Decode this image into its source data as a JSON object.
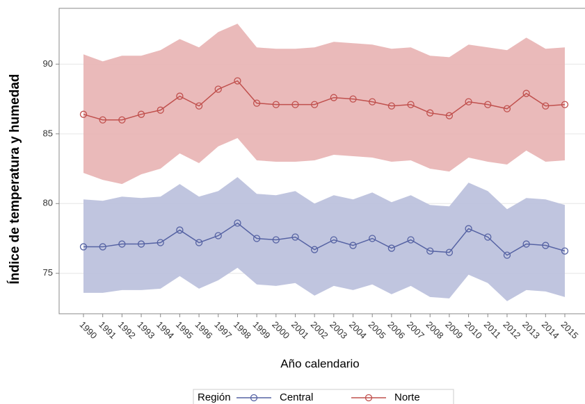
{
  "chart_data": {
    "type": "line-band",
    "y_label": "Índice de temperatura y humedad",
    "x_label": "Año calendario",
    "legend_title": "Región",
    "categories": [
      "1990",
      "1991",
      "1992",
      "1993",
      "1994",
      "1995",
      "1996",
      "1997",
      "1998",
      "1999",
      "2000",
      "2001",
      "2002",
      "2003",
      "2004",
      "2005",
      "2006",
      "2007",
      "2008",
      "2009",
      "2010",
      "2011",
      "2012",
      "2013",
      "2014",
      "2015"
    ],
    "ylim": [
      72.1,
      94.0
    ],
    "yticks": [
      75,
      80,
      85,
      90
    ],
    "grid": true,
    "series": [
      {
        "name": "Central",
        "color": "#5562a3",
        "band_color": "#b9bfdc",
        "values": [
          76.9,
          76.9,
          77.1,
          77.1,
          77.2,
          78.1,
          77.2,
          77.7,
          78.6,
          77.5,
          77.4,
          77.6,
          76.7,
          77.4,
          77.0,
          77.5,
          76.8,
          77.4,
          76.6,
          76.5,
          78.2,
          77.6,
          76.3,
          77.1,
          77.0,
          76.6
        ],
        "upper": [
          80.3,
          80.2,
          80.5,
          80.4,
          80.5,
          81.4,
          80.5,
          80.9,
          81.9,
          80.7,
          80.6,
          80.9,
          80.0,
          80.6,
          80.3,
          80.8,
          80.1,
          80.6,
          79.9,
          79.8,
          81.5,
          80.9,
          79.6,
          80.4,
          80.3,
          79.9
        ],
        "lower": [
          73.6,
          73.6,
          73.8,
          73.8,
          73.9,
          74.8,
          73.9,
          74.5,
          75.4,
          74.2,
          74.1,
          74.3,
          73.4,
          74.1,
          73.8,
          74.2,
          73.5,
          74.1,
          73.3,
          73.2,
          74.9,
          74.3,
          73.0,
          73.8,
          73.7,
          73.3
        ]
      },
      {
        "name": "Norte",
        "color": "#c0504d",
        "band_color": "#e8b3b3",
        "values": [
          86.4,
          86.0,
          86.0,
          86.4,
          86.7,
          87.7,
          87.0,
          88.2,
          88.8,
          87.2,
          87.1,
          87.1,
          87.1,
          87.6,
          87.5,
          87.3,
          87.0,
          87.1,
          86.5,
          86.3,
          87.3,
          87.1,
          86.8,
          87.9,
          87.0,
          87.1
        ],
        "upper": [
          90.7,
          90.2,
          90.6,
          90.6,
          91.0,
          91.8,
          91.2,
          92.3,
          92.9,
          91.2,
          91.1,
          91.1,
          91.2,
          91.6,
          91.5,
          91.4,
          91.1,
          91.2,
          90.6,
          90.5,
          91.4,
          91.2,
          91.0,
          91.9,
          91.1,
          91.2
        ],
        "lower": [
          82.2,
          81.7,
          81.4,
          82.1,
          82.5,
          83.6,
          82.9,
          84.1,
          84.7,
          83.1,
          83.0,
          83.0,
          83.1,
          83.5,
          83.4,
          83.3,
          83.0,
          83.1,
          82.5,
          82.3,
          83.3,
          83.0,
          82.8,
          83.8,
          83.0,
          83.1
        ]
      }
    ]
  }
}
